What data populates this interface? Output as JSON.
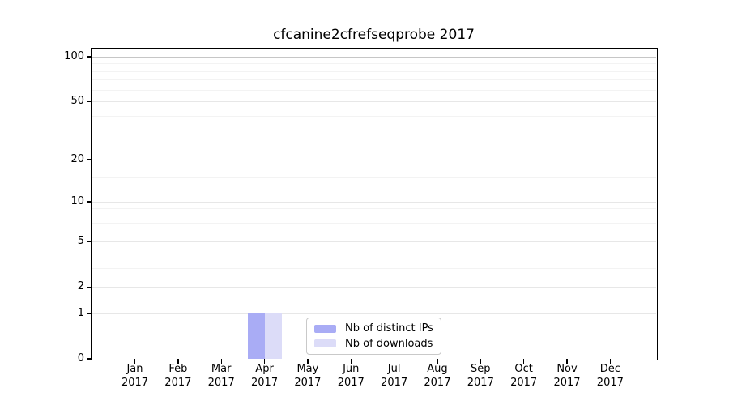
{
  "title": "cfcanine2cfrefseqprobe 2017",
  "chart_data": {
    "type": "bar",
    "title": "cfcanine2cfrefseqprobe 2017",
    "categories": [
      "Jan",
      "Feb",
      "Mar",
      "Apr",
      "May",
      "Jun",
      "Jul",
      "Aug",
      "Sep",
      "Oct",
      "Nov",
      "Dec"
    ],
    "year": "2017",
    "series": [
      {
        "name": "Nb of distinct IPs",
        "color": "#a9acf5",
        "values": [
          0,
          0,
          0,
          1,
          0,
          0,
          0,
          0,
          0,
          0,
          0,
          0
        ]
      },
      {
        "name": "Nb of downloads",
        "color": "#dcdcf8",
        "values": [
          0,
          0,
          0,
          1,
          0,
          0,
          0,
          0,
          0,
          0,
          0,
          0
        ]
      }
    ],
    "xlabel": "",
    "ylabel": "",
    "y_scale": "log1p",
    "y_ticks": [
      0,
      1,
      2,
      5,
      10,
      20,
      50,
      100
    ],
    "y_minor_ticks": [
      3,
      4,
      6,
      7,
      8,
      9,
      15,
      30,
      40,
      60,
      70,
      80,
      90
    ],
    "ylim": [
      0,
      100
    ],
    "grid": true,
    "legend_position": "lower center"
  },
  "colors": {
    "bar_distinct_ips": "#a9acf5",
    "bar_downloads": "#dcdcf8",
    "grid_major": "#e7e7e7",
    "grid_minor": "#f3f3f3",
    "grid_top": "#c6c6c6",
    "axis": "#000000",
    "legend_border": "#c9c9c9"
  }
}
